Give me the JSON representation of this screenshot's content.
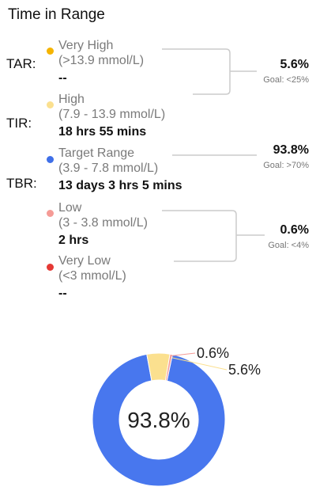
{
  "header": {
    "title": "Time in Range"
  },
  "groups": {
    "tar": {
      "label": "TAR:",
      "percent": "5.6%",
      "goal": "Goal: <25%"
    },
    "tir": {
      "label": "TIR:",
      "percent": "93.8%",
      "goal": "Goal: >70%"
    },
    "tbr": {
      "label": "TBR:",
      "percent": "0.6%",
      "goal": "Goal: <4%"
    }
  },
  "categories": {
    "very_high": {
      "name": "Very High",
      "range": "(>13.9 mmol/L)",
      "duration": "--",
      "color": "#f5b400"
    },
    "high": {
      "name": "High",
      "range": "(7.9 - 13.9 mmol/L)",
      "duration": "18 hrs 55 mins",
      "color": "#fbe08f"
    },
    "target": {
      "name": "Target Range",
      "range": "(3.9 - 7.8 mmol/L)",
      "duration": "13 days 3 hrs 5 mins",
      "color": "#3f6fe8"
    },
    "low": {
      "name": "Low",
      "range": "(3 - 3.8 mmol/L)",
      "duration": "2 hrs",
      "color": "#f59b96"
    },
    "very_low": {
      "name": "Very Low",
      "range": "(<3 mmol/L)",
      "duration": "--",
      "color": "#e53935"
    }
  },
  "chart_data": {
    "type": "pie",
    "center_label": "93.8%",
    "slices": [
      {
        "value": 93.8,
        "color": "#4877ee",
        "label": ""
      },
      {
        "value": 5.6,
        "color": "#fbe08f",
        "label": "5.6%"
      },
      {
        "value": 0.6,
        "color": "#f59b96",
        "label": "0.6%"
      }
    ]
  }
}
